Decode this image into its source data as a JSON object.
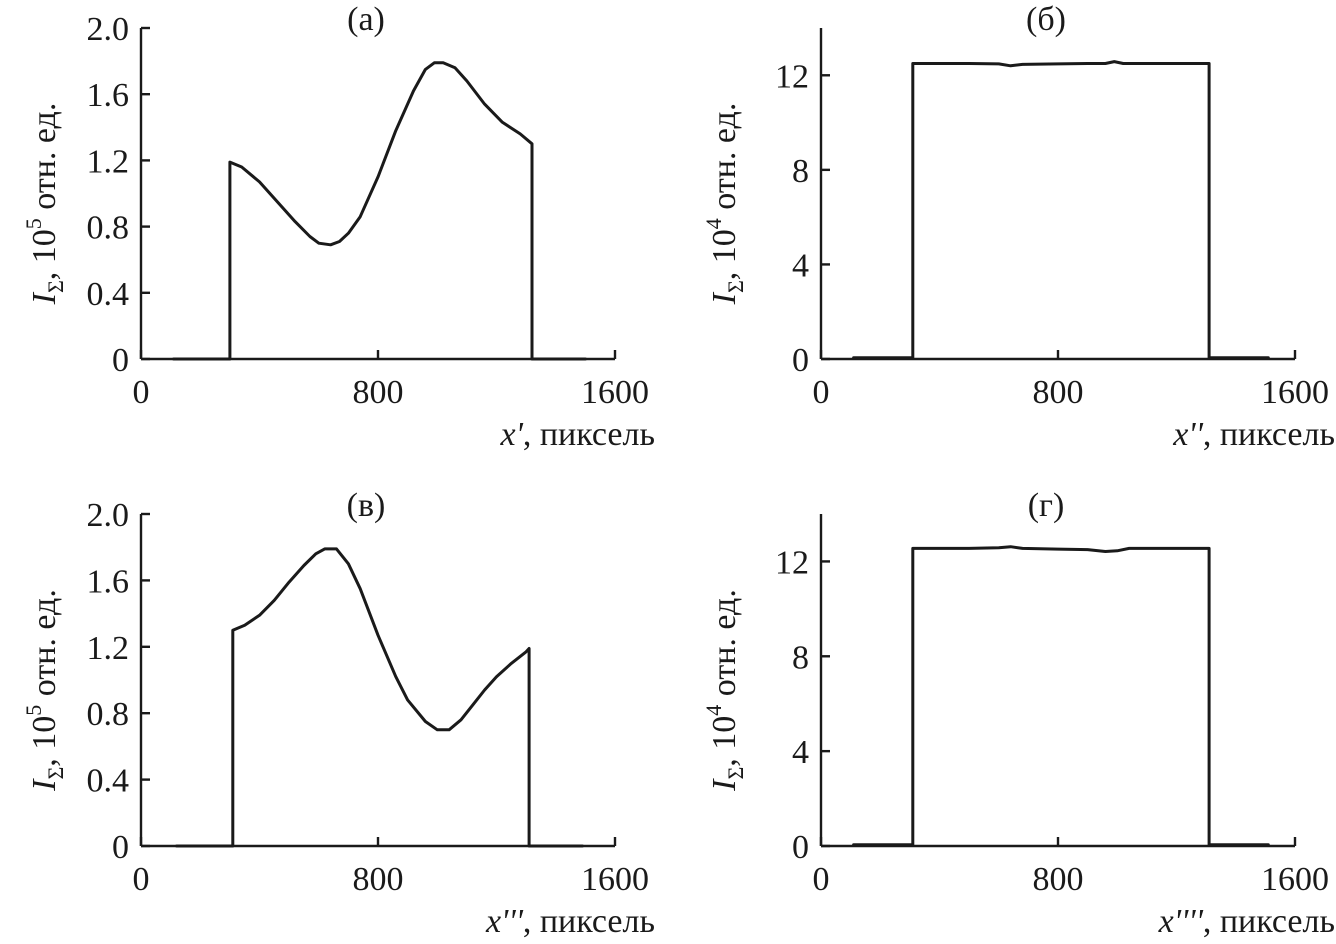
{
  "chart_data": [
    {
      "type": "line",
      "panel_label": "(а)",
      "xlim": [
        0,
        1600
      ],
      "ylim": [
        0,
        2.0
      ],
      "xticks": [
        "0",
        "800",
        "1600"
      ],
      "yticks": [
        "0",
        "0.4",
        "0.8",
        "1.2",
        "1.6",
        "2.0"
      ],
      "ylabel": {
        "var": "I",
        "sub": "Σ",
        "prefix": ", 10",
        "sup": "5",
        "unit": " отн. ед."
      },
      "xlabel": {
        "var": "x'",
        "unit": ", пиксель"
      },
      "series": [
        {
          "name": "I_Σ",
          "x": [
            110,
            300,
            300,
            340,
            400,
            460,
            520,
            570,
            600,
            640,
            670,
            700,
            740,
            800,
            860,
            920,
            960,
            990,
            1020,
            1060,
            1100,
            1160,
            1220,
            1280,
            1320,
            1320,
            1500
          ],
          "y": [
            0,
            0,
            1.19,
            1.16,
            1.07,
            0.95,
            0.83,
            0.74,
            0.7,
            0.69,
            0.71,
            0.76,
            0.86,
            1.1,
            1.38,
            1.62,
            1.75,
            1.79,
            1.79,
            1.76,
            1.68,
            1.54,
            1.43,
            1.36,
            1.3,
            0,
            0
          ]
        }
      ]
    },
    {
      "type": "line",
      "panel_label": "(б)",
      "xlim": [
        0,
        1600
      ],
      "ylim": [
        0,
        14
      ],
      "xticks": [
        "0",
        "800",
        "1600"
      ],
      "yticks": [
        "0",
        "4",
        "8",
        "12"
      ],
      "ylabel": {
        "var": "I",
        "sub": "Σ",
        "prefix": ", 10",
        "sup": "4",
        "unit": " отн. ед."
      },
      "xlabel": {
        "var": "x''",
        "unit": ", пиксель"
      },
      "series": [
        {
          "name": "I_Σ",
          "x": [
            110,
            310,
            310,
            500,
            600,
            640,
            680,
            800,
            900,
            960,
            990,
            1020,
            1100,
            1310,
            1310,
            1510
          ],
          "y": [
            0.05,
            0.05,
            12.5,
            12.5,
            12.48,
            12.4,
            12.46,
            12.48,
            12.5,
            12.5,
            12.58,
            12.5,
            12.5,
            12.5,
            0.05,
            0.05
          ]
        }
      ]
    },
    {
      "type": "line",
      "panel_label": "(в)",
      "xlim": [
        0,
        1600
      ],
      "ylim": [
        0,
        2.0
      ],
      "xticks": [
        "0",
        "800",
        "1600"
      ],
      "yticks": [
        "0",
        "0.4",
        "0.8",
        "1.2",
        "1.6",
        "2.0"
      ],
      "ylabel": {
        "var": "I",
        "sub": "Σ",
        "prefix": ", 10",
        "sup": "5",
        "unit": " отн. ед."
      },
      "xlabel": {
        "var": "x'''",
        "unit": ", пиксель"
      },
      "series": [
        {
          "name": "I_Σ",
          "x": [
            120,
            310,
            310,
            350,
            400,
            450,
            500,
            550,
            590,
            620,
            660,
            700,
            740,
            800,
            860,
            900,
            960,
            1000,
            1040,
            1080,
            1120,
            1160,
            1200,
            1250,
            1300,
            1310,
            1310,
            1490
          ],
          "y": [
            0,
            0,
            1.3,
            1.33,
            1.39,
            1.48,
            1.59,
            1.69,
            1.76,
            1.79,
            1.79,
            1.7,
            1.55,
            1.27,
            1.02,
            0.88,
            0.75,
            0.7,
            0.7,
            0.76,
            0.85,
            0.94,
            1.02,
            1.1,
            1.17,
            1.19,
            0,
            0
          ]
        }
      ]
    },
    {
      "type": "line",
      "panel_label": "(г)",
      "xlim": [
        0,
        1600
      ],
      "ylim": [
        0,
        14
      ],
      "xticks": [
        "0",
        "800",
        "1600"
      ],
      "yticks": [
        "0",
        "4",
        "8",
        "12"
      ],
      "ylabel": {
        "var": "I",
        "sub": "Σ",
        "prefix": ", 10",
        "sup": "4",
        "unit": " отн. ед."
      },
      "xlabel": {
        "var": "x''''",
        "unit": ", пиксель"
      },
      "series": [
        {
          "name": "I_Σ",
          "x": [
            110,
            310,
            310,
            500,
            600,
            640,
            680,
            800,
            900,
            960,
            1000,
            1040,
            1100,
            1310,
            1310,
            1510
          ],
          "y": [
            0.05,
            0.05,
            12.55,
            12.55,
            12.58,
            12.62,
            12.55,
            12.52,
            12.5,
            12.42,
            12.45,
            12.55,
            12.55,
            12.55,
            0.05,
            0.05
          ]
        }
      ]
    }
  ]
}
